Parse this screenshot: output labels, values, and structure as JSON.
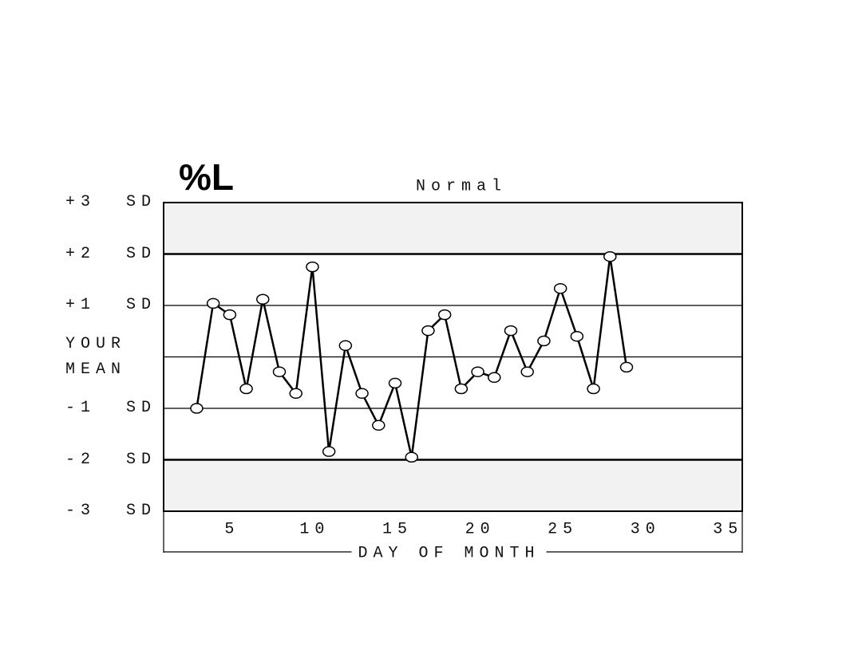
{
  "chart_data": {
    "type": "line",
    "title": "%L",
    "subtitle": "Normal",
    "x_label": "DAY OF MONTH",
    "x": [
      3,
      4,
      5,
      6,
      7,
      8,
      9,
      10,
      11,
      12,
      13,
      14,
      15,
      16,
      17,
      18,
      19,
      20,
      21,
      22,
      23,
      24,
      25,
      26,
      27,
      28,
      29
    ],
    "values": [
      -1.0,
      1.04,
      0.82,
      -0.62,
      1.12,
      -0.29,
      -0.71,
      1.75,
      -1.84,
      0.22,
      -0.71,
      -1.33,
      -0.51,
      -1.95,
      0.51,
      0.82,
      -0.62,
      -0.29,
      -0.4,
      0.51,
      -0.29,
      0.31,
      1.33,
      0.4,
      -0.62,
      1.95,
      -0.2
    ],
    "color": "#000000",
    "xlim": [
      1,
      36
    ],
    "xticks": [
      5,
      10,
      15,
      20,
      25,
      30,
      35
    ],
    "ylim": [
      -3,
      3
    ],
    "yticks": [
      {
        "value": 3,
        "label": "+3  SD"
      },
      {
        "value": 2,
        "label": "+2  SD"
      },
      {
        "value": 1,
        "label": "+1  SD"
      },
      {
        "value": 0,
        "label": "YOUR MEAN"
      },
      {
        "value": -1,
        "label": "-1  SD"
      },
      {
        "value": -2,
        "label": "-2  SD"
      },
      {
        "value": -3,
        "label": "-3  SD"
      }
    ],
    "grid": true
  }
}
